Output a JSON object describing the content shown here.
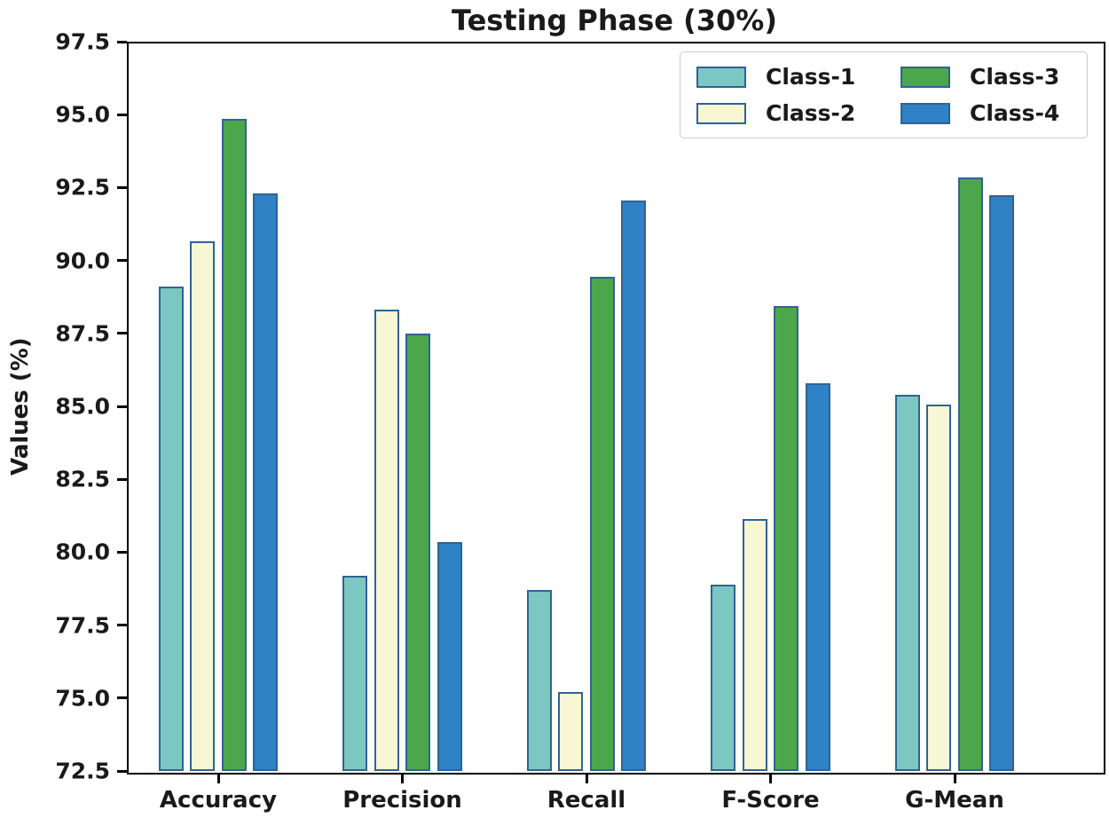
{
  "chart_data": {
    "type": "bar",
    "title": "Testing Phase (30%)",
    "xlabel": "",
    "ylabel": "Values (%)",
    "ylim": [
      72.5,
      97.5
    ],
    "ytick_step": 2.5,
    "yticks": [
      "97.5",
      "95.0",
      "92.5",
      "90.0",
      "87.5",
      "85.0",
      "82.5",
      "80.0",
      "77.5",
      "75.0",
      "72.5"
    ],
    "categories": [
      "Accuracy",
      "Precision",
      "Recall",
      "F-Score",
      "G-Mean"
    ],
    "series": [
      {
        "name": "Class-1",
        "color": "#7cc7c2",
        "values": [
          89.1,
          79.2,
          78.7,
          78.9,
          85.4
        ]
      },
      {
        "name": "Class-2",
        "color": "#f7f6d5",
        "values": [
          90.65,
          88.3,
          75.2,
          81.15,
          85.05
        ]
      },
      {
        "name": "Class-3",
        "color": "#4ca64c",
        "values": [
          94.85,
          87.5,
          89.45,
          88.45,
          92.85
        ]
      },
      {
        "name": "Class-4",
        "color": "#2e82c5",
        "values": [
          92.3,
          80.35,
          92.05,
          85.8,
          92.25
        ]
      }
    ],
    "bar_edge_color": "#2f6394",
    "legend_position": "upper right",
    "legend_columns": 2,
    "grid": false
  }
}
